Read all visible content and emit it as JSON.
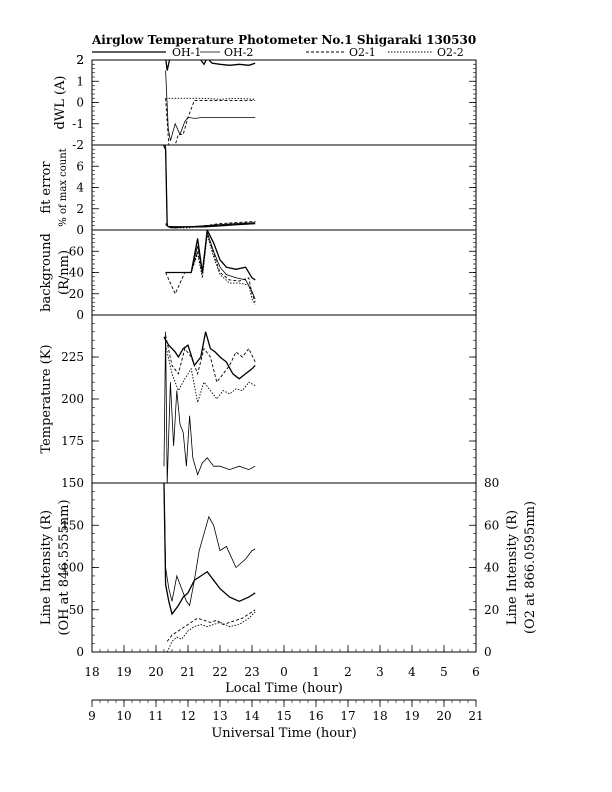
{
  "title": "Airglow Temperature Photometer No.1   Shigaraki   130530",
  "legend": [
    {
      "name": "OH-1",
      "dash": "solid",
      "width": 1.3
    },
    {
      "name": "OH-2",
      "dash": "solid",
      "width": 0.8
    },
    {
      "name": "O2-1",
      "dash": "3,2",
      "width": 0.9
    },
    {
      "name": "O2-2",
      "dash": "1.5,1.5",
      "width": 0.9
    }
  ],
  "chart_data": {
    "type": "line",
    "x_axis": {
      "label": "Local Time (hour)",
      "ticks": [
        18,
        19,
        20,
        21,
        22,
        23,
        0,
        1,
        2,
        3,
        4,
        5,
        6
      ],
      "range": [
        18,
        30
      ]
    },
    "x_axis_secondary": {
      "label": "Universal Time (hour)",
      "ticks": [
        9,
        10,
        11,
        12,
        13,
        14,
        15,
        16,
        17,
        18,
        19,
        20,
        21
      ]
    },
    "panels": [
      {
        "id": "dwl",
        "ylabel": "dWL (A)",
        "ylim": [
          -2,
          2
        ],
        "yticks": [
          -2,
          -1,
          0,
          1,
          2
        ],
        "series": [
          {
            "name": "OH-1",
            "x": [
              20.3,
              20.35,
              20.45,
              20.6,
              20.75,
              20.9,
              21.05,
              21.2,
              21.35,
              21.5,
              21.6,
              21.75,
              22.0,
              22.3,
              22.6,
              22.9,
              23.1
            ],
            "y": [
              2.1,
              1.5,
              2.2,
              2.2,
              2.15,
              2.1,
              2.05,
              2.0,
              2.1,
              1.8,
              2.1,
              1.85,
              1.8,
              1.75,
              1.8,
              1.75,
              1.85
            ]
          },
          {
            "name": "OH-2",
            "x": [
              20.3,
              20.38,
              20.45,
              20.6,
              20.75,
              20.9,
              21.0,
              21.2,
              21.5,
              22.0,
              22.5,
              23.1
            ],
            "y": [
              1.5,
              -1.2,
              -1.8,
              -1.0,
              -1.5,
              -0.9,
              -0.7,
              -0.75,
              -0.7,
              -0.7,
              -0.7,
              -0.7
            ]
          },
          {
            "name": "O2-1",
            "x": [
              20.3,
              20.4,
              20.6,
              20.7,
              20.85,
              21.0,
              21.2,
              21.5,
              22.0,
              22.5,
              23.1
            ],
            "y": [
              0.2,
              -2.0,
              -2.0,
              -1.5,
              -1.5,
              -0.7,
              0.1,
              0.1,
              0.1,
              0.1,
              0.1
            ]
          },
          {
            "name": "O2-2",
            "x": [
              20.3,
              20.4,
              20.55,
              20.7,
              20.9,
              21.2,
              21.5,
              22.0,
              22.5,
              23.1
            ],
            "y": [
              0.2,
              0.2,
              0.2,
              0.2,
              0.2,
              0.2,
              0.2,
              0.15,
              0.2,
              0.15
            ]
          }
        ]
      },
      {
        "id": "fit_error",
        "ylabel": "fit error",
        "ylabel2": "% of max count",
        "ylim": [
          0,
          8
        ],
        "yticks": [
          0,
          2,
          4,
          6
        ],
        "series": [
          {
            "name": "OH-1",
            "x": [
              20.2,
              20.3,
              20.35,
              20.4,
              20.6,
              21.0,
              21.5,
              22.0,
              22.5,
              23.1
            ],
            "y": [
              8.2,
              7.6,
              0.4,
              0.3,
              0.3,
              0.3,
              0.3,
              0.4,
              0.5,
              0.6
            ]
          },
          {
            "name": "OH-2",
            "x": [
              20.2,
              20.3,
              20.35,
              20.45,
              20.6,
              21.0,
              21.5,
              22.0,
              22.5,
              23.1
            ],
            "y": [
              8.0,
              8.1,
              0.4,
              0.2,
              0.2,
              0.3,
              0.4,
              0.5,
              0.6,
              0.7
            ]
          },
          {
            "name": "O2-1",
            "x": [
              20.3,
              20.4,
              20.6,
              21.0,
              21.5,
              22.0,
              22.5,
              23.1
            ],
            "y": [
              0.6,
              0.4,
              0.2,
              0.3,
              0.4,
              0.6,
              0.7,
              0.8
            ]
          },
          {
            "name": "O2-2",
            "x": [
              20.3,
              20.4,
              20.6,
              21.0,
              21.5,
              22.0,
              22.5,
              23.1
            ],
            "y": [
              0.5,
              0.3,
              0.2,
              0.2,
              0.4,
              0.5,
              0.6,
              0.7
            ]
          }
        ]
      },
      {
        "id": "background",
        "ylabel": "background",
        "ylabel2": "(R/nm)",
        "ylim": [
          0,
          80
        ],
        "yticks": [
          0,
          20,
          40,
          60
        ],
        "series": [
          {
            "name": "OH-1",
            "x": [
              20.3,
              20.5,
              20.8,
              21.1,
              21.3,
              21.45,
              21.6,
              21.8,
              22.0,
              22.2,
              22.5,
              22.8,
              23.0,
              23.1
            ],
            "y": [
              40,
              40,
              40,
              40,
              72,
              40,
              80,
              68,
              52,
              45,
              43,
              45,
              35,
              33
            ]
          },
          {
            "name": "OH-2",
            "x": [
              20.3,
              20.5,
              20.8,
              21.1,
              21.3,
              21.45,
              21.6,
              21.8,
              22.0,
              22.2,
              22.5,
              22.8,
              23.0,
              23.1
            ],
            "y": [
              40,
              40,
              40,
              40,
              65,
              42,
              78,
              60,
              45,
              38,
              35,
              33,
              22,
              15
            ]
          },
          {
            "name": "O2-1",
            "x": [
              20.3,
              20.6,
              20.9,
              21.1,
              21.3,
              21.45,
              21.6,
              21.8,
              22.0,
              22.3,
              22.6,
              22.9,
              23.0,
              23.1
            ],
            "y": [
              40,
              20,
              40,
              40,
              60,
              38,
              78,
              58,
              40,
              33,
              32,
              35,
              20,
              12
            ]
          },
          {
            "name": "O2-2",
            "x": [
              20.3,
              20.6,
              20.9,
              21.1,
              21.3,
              21.45,
              21.6,
              21.8,
              22.0,
              22.3,
              22.6,
              22.9,
              23.0,
              23.1
            ],
            "y": [
              40,
              40,
              40,
              40,
              58,
              35,
              75,
              55,
              38,
              30,
              30,
              28,
              15,
              10
            ]
          }
        ]
      },
      {
        "id": "temperature",
        "ylabel": "Temperature (K)",
        "ylim": [
          150,
          250
        ],
        "yticks": [
          150,
          175,
          200,
          225
        ],
        "series": [
          {
            "name": "OH-1",
            "x": [
              20.25,
              20.3,
              20.4,
              20.5,
              20.6,
              20.7,
              20.85,
              21.0,
              21.2,
              21.4,
              21.55,
              21.7,
              21.85,
              22.0,
              22.2,
              22.4,
              22.6,
              22.8,
              23.0,
              23.1
            ],
            "y": [
              237,
              235,
              232,
              230,
              228,
              225,
              230,
              232,
              220,
              225,
              240,
              230,
              228,
              225,
              222,
              215,
              212,
              215,
              218,
              220
            ]
          },
          {
            "name": "OH-2",
            "x": [
              20.25,
              20.3,
              20.35,
              20.45,
              20.55,
              20.65,
              20.75,
              20.85,
              20.95,
              21.05,
              21.15,
              21.3,
              21.45,
              21.6,
              21.8,
              22.0,
              22.3,
              22.6,
              22.9,
              23.1
            ],
            "y": [
              160,
              240,
              150,
              210,
              172,
              205,
              185,
              180,
              160,
              190,
              165,
              155,
              162,
              165,
              160,
              160,
              158,
              160,
              158,
              160
            ]
          },
          {
            "name": "O2-1",
            "x": [
              20.3,
              20.5,
              20.7,
              20.9,
              21.1,
              21.3,
              21.5,
              21.7,
              21.9,
              22.1,
              22.3,
              22.5,
              22.7,
              22.9,
              23.1
            ],
            "y": [
              238,
              220,
              215,
              230,
              225,
              215,
              230,
              225,
              210,
              215,
              220,
              228,
              225,
              230,
              222
            ]
          },
          {
            "name": "O2-2",
            "x": [
              20.3,
              20.5,
              20.7,
              20.9,
              21.1,
              21.3,
              21.5,
              21.7,
              21.9,
              22.1,
              22.3,
              22.5,
              22.7,
              22.9,
              23.1
            ],
            "y": [
              232,
              215,
              205,
              212,
              218,
              198,
              210,
              205,
              200,
              205,
              203,
              206,
              205,
              210,
              208
            ]
          }
        ]
      },
      {
        "id": "intensity",
        "ylabel": "Line Intensity (R)",
        "ylabel2": "(OH at 846.5555nm)",
        "ylim": [
          0,
          200
        ],
        "yticks": [
          0,
          50,
          100,
          150
        ],
        "right_ylabel": "Line Intensity (R)",
        "right_ylabel2": "(O2 at 866.0595nm)",
        "right_ylim": [
          0,
          80
        ],
        "right_yticks": [
          0,
          20,
          40,
          60,
          80
        ],
        "series": [
          {
            "name": "OH-1",
            "x": [
              20.25,
              20.3,
              20.4,
              20.5,
              20.6,
              20.7,
              20.85,
              21.0,
              21.2,
              21.4,
              21.6,
              21.8,
              22.0,
              22.3,
              22.6,
              22.9,
              23.1
            ],
            "y": [
              200,
              80,
              60,
              45,
              50,
              55,
              65,
              70,
              85,
              90,
              95,
              85,
              75,
              65,
              60,
              65,
              70
            ]
          },
          {
            "name": "OH-2",
            "x": [
              20.25,
              20.3,
              20.4,
              20.5,
              20.65,
              20.8,
              20.95,
              21.05,
              21.2,
              21.35,
              21.5,
              21.65,
              21.8,
              22.0,
              22.2,
              22.5,
              22.8,
              23.0,
              23.1
            ],
            "y": [
              200,
              100,
              75,
              60,
              90,
              75,
              60,
              55,
              85,
              120,
              140,
              160,
              150,
              120,
              125,
              100,
              110,
              120,
              122
            ]
          },
          {
            "name": "O2-1",
            "x": [
              20.35,
              20.5,
              20.7,
              20.9,
              21.1,
              21.3,
              21.5,
              21.7,
              21.9,
              22.1,
              22.3,
              22.5,
              22.7,
              22.9,
              23.1
            ],
            "y": [
              5,
              8,
              10,
              12,
              14,
              16,
              15,
              14,
              15,
              13,
              14,
              15,
              16,
              18,
              20
            ]
          },
          {
            "name": "O2-2",
            "x": [
              20.35,
              20.5,
              20.65,
              20.8,
              21.0,
              21.2,
              21.4,
              21.6,
              21.8,
              22.0,
              22.3,
              22.6,
              22.9,
              23.1
            ],
            "y": [
              0,
              5,
              7,
              6,
              10,
              12,
              13,
              12,
              13,
              14,
              12,
              13,
              16,
              19
            ]
          }
        ]
      }
    ]
  }
}
